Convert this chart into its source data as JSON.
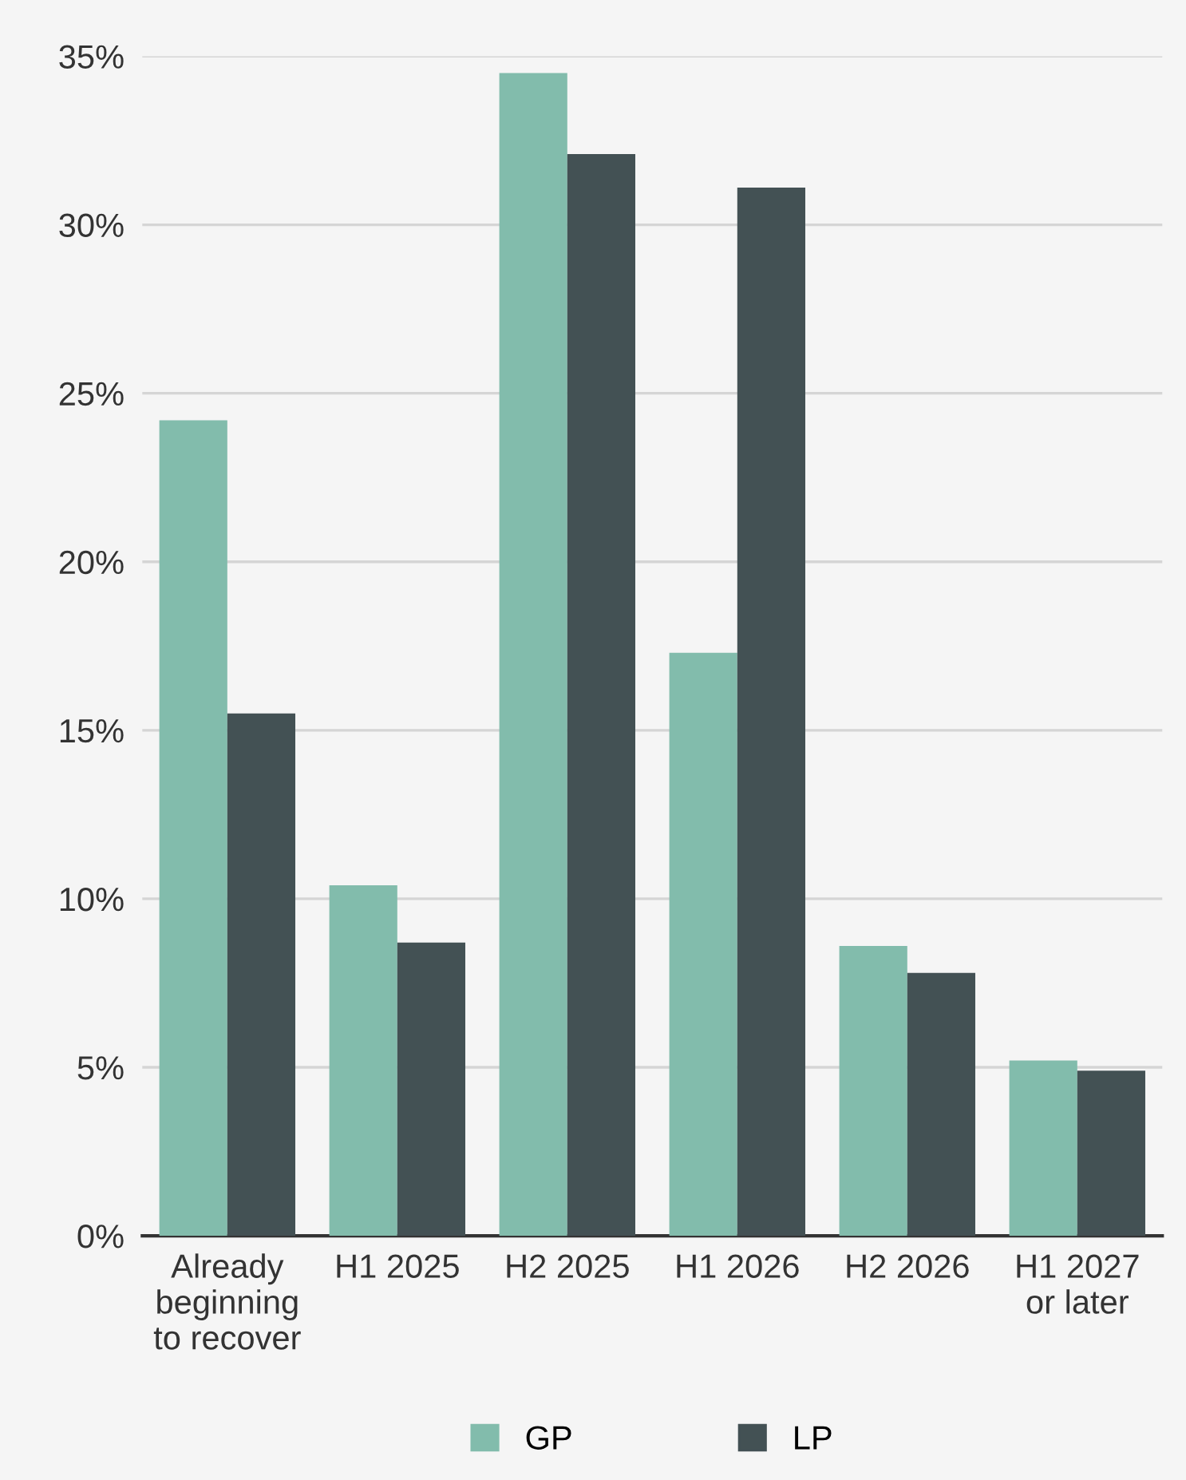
{
  "chart_data": {
    "type": "bar",
    "categories": [
      "Already\nbeginning\nto recover",
      "H1 2025",
      "H2 2025",
      "H1 2026",
      "H2 2026",
      "H1 2027\nor later"
    ],
    "series": [
      {
        "name": "GP",
        "color": "#82bcac",
        "values": [
          24.2,
          10.4,
          34.5,
          17.3,
          8.6,
          5.2
        ]
      },
      {
        "name": "LP",
        "color": "#435154",
        "values": [
          15.5,
          8.7,
          32.1,
          31.1,
          7.8,
          4.9
        ]
      }
    ],
    "ylim": [
      0,
      35
    ],
    "yticks": [
      {
        "value": 0,
        "label": "0%"
      },
      {
        "value": 5,
        "label": "5%"
      },
      {
        "value": 10,
        "label": "10%"
      },
      {
        "value": 15,
        "label": "15%"
      },
      {
        "value": 20,
        "label": "20%"
      },
      {
        "value": 25,
        "label": "25%"
      },
      {
        "value": 30,
        "label": "30%"
      },
      {
        "value": 35,
        "label": "35%"
      }
    ],
    "grid": "y",
    "legend": "bottom"
  }
}
